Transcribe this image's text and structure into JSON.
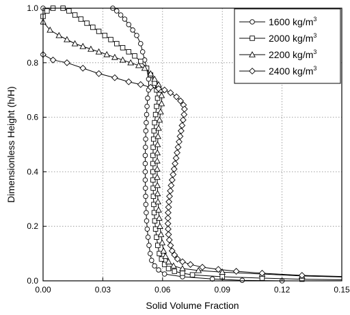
{
  "chart_data": {
    "type": "line",
    "xlabel": "Solid Volume Fraction",
    "ylabel": "Dimensionless Height (h/H)",
    "xlim": [
      0.0,
      0.15
    ],
    "ylim": [
      0.0,
      1.0
    ],
    "x_ticks": [
      "0.00",
      "0.03",
      "0.06",
      "0.09",
      "0.12",
      "0.15"
    ],
    "x_tick_values": [
      0.0,
      0.03,
      0.06,
      0.09,
      0.12,
      0.15
    ],
    "y_ticks": [
      "0.0",
      "0.2",
      "0.4",
      "0.6",
      "0.8",
      "1.0"
    ],
    "y_tick_values": [
      0.0,
      0.2,
      0.4,
      0.6,
      0.8,
      1.0
    ],
    "grid": true,
    "grid_style": "dotted",
    "legend_position": "top-right",
    "series": [
      {
        "name": "1600 kg/m",
        "name_sup": "3",
        "marker": "circle",
        "points": [
          [
            0.0,
            1.0
          ],
          [
            0.035,
            1.0
          ],
          [
            0.037,
            0.99
          ],
          [
            0.039,
            0.975
          ],
          [
            0.041,
            0.96
          ],
          [
            0.043,
            0.94
          ],
          [
            0.045,
            0.92
          ],
          [
            0.047,
            0.9
          ],
          [
            0.049,
            0.87
          ],
          [
            0.05,
            0.84
          ],
          [
            0.051,
            0.81
          ],
          [
            0.052,
            0.78
          ],
          [
            0.053,
            0.74
          ],
          [
            0.053,
            0.7
          ],
          [
            0.0525,
            0.67
          ],
          [
            0.0522,
            0.64
          ],
          [
            0.052,
            0.61
          ],
          [
            0.0518,
            0.58
          ],
          [
            0.0516,
            0.55
          ],
          [
            0.0515,
            0.52
          ],
          [
            0.0514,
            0.49
          ],
          [
            0.0513,
            0.46
          ],
          [
            0.0513,
            0.43
          ],
          [
            0.0513,
            0.4
          ],
          [
            0.0513,
            0.37
          ],
          [
            0.0514,
            0.34
          ],
          [
            0.0515,
            0.31
          ],
          [
            0.0516,
            0.28
          ],
          [
            0.0518,
            0.25
          ],
          [
            0.052,
            0.22
          ],
          [
            0.0523,
            0.19
          ],
          [
            0.0527,
            0.16
          ],
          [
            0.0532,
            0.13
          ],
          [
            0.0538,
            0.1
          ],
          [
            0.0545,
            0.075
          ],
          [
            0.056,
            0.055
          ],
          [
            0.058,
            0.04
          ],
          [
            0.061,
            0.025
          ],
          [
            0.07,
            0.015
          ],
          [
            0.085,
            0.007
          ],
          [
            0.1,
            0.002
          ],
          [
            0.12,
            0.0
          ],
          [
            0.15,
            0.0
          ]
        ]
      },
      {
        "name": "2000 kg/m",
        "name_sup": "3",
        "marker": "square",
        "points": [
          [
            0.0,
            0.97
          ],
          [
            0.002,
            0.99
          ],
          [
            0.005,
            1.0
          ],
          [
            0.01,
            1.0
          ],
          [
            0.013,
            0.99
          ],
          [
            0.016,
            0.975
          ],
          [
            0.019,
            0.96
          ],
          [
            0.022,
            0.945
          ],
          [
            0.025,
            0.93
          ],
          [
            0.028,
            0.915
          ],
          [
            0.031,
            0.9
          ],
          [
            0.034,
            0.885
          ],
          [
            0.037,
            0.87
          ],
          [
            0.04,
            0.855
          ],
          [
            0.043,
            0.84
          ],
          [
            0.046,
            0.825
          ],
          [
            0.049,
            0.805
          ],
          [
            0.052,
            0.78
          ],
          [
            0.054,
            0.755
          ],
          [
            0.056,
            0.725
          ],
          [
            0.057,
            0.7
          ],
          [
            0.0575,
            0.67
          ],
          [
            0.057,
            0.64
          ],
          [
            0.0565,
            0.61
          ],
          [
            0.056,
            0.58
          ],
          [
            0.0557,
            0.55
          ],
          [
            0.0555,
            0.52
          ],
          [
            0.0553,
            0.49
          ],
          [
            0.0552,
            0.46
          ],
          [
            0.0552,
            0.43
          ],
          [
            0.0552,
            0.4
          ],
          [
            0.0552,
            0.37
          ],
          [
            0.0553,
            0.34
          ],
          [
            0.0554,
            0.31
          ],
          [
            0.0556,
            0.28
          ],
          [
            0.0558,
            0.25
          ],
          [
            0.0561,
            0.22
          ],
          [
            0.0565,
            0.19
          ],
          [
            0.057,
            0.16
          ],
          [
            0.0576,
            0.13
          ],
          [
            0.0584,
            0.1
          ],
          [
            0.0595,
            0.08
          ],
          [
            0.061,
            0.06
          ],
          [
            0.063,
            0.045
          ],
          [
            0.066,
            0.035
          ],
          [
            0.07,
            0.028
          ],
          [
            0.075,
            0.022
          ],
          [
            0.09,
            0.015
          ],
          [
            0.11,
            0.01
          ],
          [
            0.13,
            0.006
          ],
          [
            0.15,
            0.004
          ]
        ]
      },
      {
        "name": "2200 kg/m",
        "name_sup": "3",
        "marker": "triangle",
        "points": [
          [
            0.0,
            0.95
          ],
          [
            0.0035,
            0.92
          ],
          [
            0.008,
            0.9
          ],
          [
            0.012,
            0.885
          ],
          [
            0.016,
            0.87
          ],
          [
            0.02,
            0.86
          ],
          [
            0.024,
            0.85
          ],
          [
            0.028,
            0.84
          ],
          [
            0.032,
            0.83
          ],
          [
            0.036,
            0.82
          ],
          [
            0.04,
            0.81
          ],
          [
            0.044,
            0.8
          ],
          [
            0.048,
            0.79
          ],
          [
            0.051,
            0.78
          ],
          [
            0.054,
            0.76
          ],
          [
            0.056,
            0.74
          ],
          [
            0.058,
            0.72
          ],
          [
            0.059,
            0.7
          ],
          [
            0.0595,
            0.68
          ],
          [
            0.0595,
            0.65
          ],
          [
            0.059,
            0.62
          ],
          [
            0.0585,
            0.59
          ],
          [
            0.058,
            0.56
          ],
          [
            0.0577,
            0.53
          ],
          [
            0.0575,
            0.5
          ],
          [
            0.0574,
            0.47
          ],
          [
            0.0573,
            0.44
          ],
          [
            0.0573,
            0.41
          ],
          [
            0.0573,
            0.38
          ],
          [
            0.0574,
            0.35
          ],
          [
            0.0575,
            0.32
          ],
          [
            0.0577,
            0.29
          ],
          [
            0.058,
            0.26
          ],
          [
            0.0583,
            0.23
          ],
          [
            0.0587,
            0.2
          ],
          [
            0.0592,
            0.17
          ],
          [
            0.0598,
            0.14
          ],
          [
            0.0605,
            0.11
          ],
          [
            0.0615,
            0.09
          ],
          [
            0.063,
            0.07
          ],
          [
            0.0655,
            0.055
          ],
          [
            0.07,
            0.045
          ],
          [
            0.078,
            0.038
          ],
          [
            0.09,
            0.032
          ],
          [
            0.11,
            0.025
          ],
          [
            0.13,
            0.018
          ],
          [
            0.15,
            0.014
          ]
        ]
      },
      {
        "name": "2400 kg/m",
        "name_sup": "3",
        "marker": "diamond",
        "points": [
          [
            0.0,
            0.83
          ],
          [
            0.005,
            0.81
          ],
          [
            0.012,
            0.8
          ],
          [
            0.02,
            0.78
          ],
          [
            0.028,
            0.76
          ],
          [
            0.036,
            0.745
          ],
          [
            0.043,
            0.73
          ],
          [
            0.049,
            0.72
          ],
          [
            0.054,
            0.71
          ],
          [
            0.058,
            0.705
          ],
          [
            0.061,
            0.7
          ],
          [
            0.064,
            0.69
          ],
          [
            0.067,
            0.675
          ],
          [
            0.069,
            0.66
          ],
          [
            0.0705,
            0.645
          ],
          [
            0.071,
            0.63
          ],
          [
            0.0708,
            0.61
          ],
          [
            0.0703,
            0.59
          ],
          [
            0.0698,
            0.57
          ],
          [
            0.0693,
            0.55
          ],
          [
            0.0688,
            0.53
          ],
          [
            0.0683,
            0.51
          ],
          [
            0.0678,
            0.49
          ],
          [
            0.0673,
            0.47
          ],
          [
            0.0668,
            0.45
          ],
          [
            0.0663,
            0.43
          ],
          [
            0.0658,
            0.41
          ],
          [
            0.0653,
            0.39
          ],
          [
            0.0648,
            0.37
          ],
          [
            0.0643,
            0.35
          ],
          [
            0.0639,
            0.33
          ],
          [
            0.0635,
            0.31
          ],
          [
            0.0632,
            0.29
          ],
          [
            0.063,
            0.27
          ],
          [
            0.0628,
            0.25
          ],
          [
            0.0627,
            0.23
          ],
          [
            0.0627,
            0.21
          ],
          [
            0.0628,
            0.19
          ],
          [
            0.063,
            0.17
          ],
          [
            0.0634,
            0.15
          ],
          [
            0.064,
            0.13
          ],
          [
            0.0648,
            0.11
          ],
          [
            0.066,
            0.095
          ],
          [
            0.0675,
            0.08
          ],
          [
            0.07,
            0.07
          ],
          [
            0.074,
            0.06
          ],
          [
            0.08,
            0.05
          ],
          [
            0.088,
            0.042
          ],
          [
            0.097,
            0.035
          ],
          [
            0.11,
            0.028
          ],
          [
            0.13,
            0.02
          ],
          [
            0.15,
            0.016
          ]
        ]
      }
    ]
  }
}
